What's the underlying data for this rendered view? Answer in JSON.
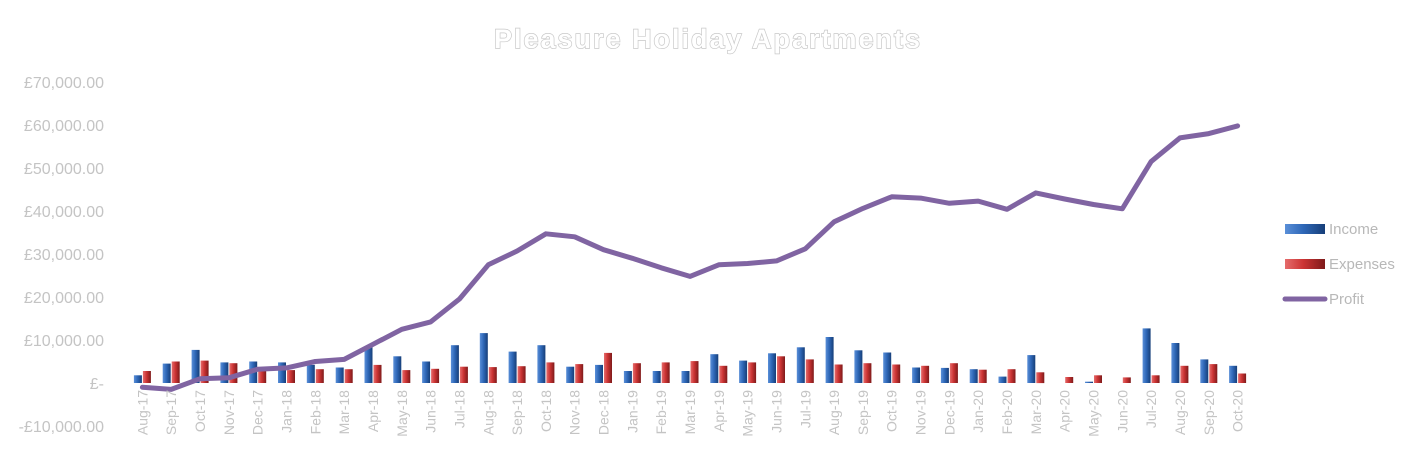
{
  "chart_data": {
    "type": "bar",
    "title": "Pleasure Holiday Apartments",
    "xlabel": "",
    "ylabel": "",
    "ylim": [
      -10000,
      70000
    ],
    "y_ticks": [
      70000,
      60000,
      50000,
      40000,
      30000,
      20000,
      10000,
      0,
      -10000
    ],
    "y_tick_labels": [
      "£70,000.00",
      "£60,000.00",
      "£50,000.00",
      "£40,000.00",
      "£30,000.00",
      "£20,000.00",
      "£10,000.00",
      "£-",
      "-£10,000.00"
    ],
    "grid": false,
    "legend_position": "right",
    "categories": [
      "Aug-17",
      "Sep-17",
      "Oct-17",
      "Nov-17",
      "Dec-17",
      "Jan-18",
      "Feb-18",
      "Mar-18",
      "Apr-18",
      "May-18",
      "Jun-18",
      "Jul-18",
      "Aug-18",
      "Sep-18",
      "Oct-18",
      "Nov-18",
      "Dec-18",
      "Jan-19",
      "Feb-19",
      "Mar-19",
      "Apr-19",
      "May-19",
      "Jun-19",
      "Jul-19",
      "Aug-19",
      "Sep-19",
      "Oct-19",
      "Nov-19",
      "Dec-19",
      "Jan-20",
      "Feb-20",
      "Mar-20",
      "Apr-20",
      "May-20",
      "Jun-20",
      "Jul-20",
      "Aug-20",
      "Sep-20",
      "Oct-20"
    ],
    "series": [
      {
        "name": "Income",
        "type": "bar",
        "color": "#2e64b4",
        "values": [
          1800,
          4500,
          7700,
          4800,
          5000,
          4800,
          4200,
          3600,
          8500,
          6200,
          5000,
          8800,
          11600,
          7300,
          8800,
          3800,
          4200,
          2800,
          2800,
          2800,
          6700,
          5200,
          6900,
          8300,
          10700,
          7600,
          7100,
          3600,
          3500,
          3200,
          1500,
          6500,
          0,
          300,
          0,
          12700,
          9300,
          5500,
          4000
        ]
      },
      {
        "name": "Expenses",
        "type": "bar",
        "color": "#d23a3a",
        "values": [
          2800,
          5000,
          5200,
          4600,
          3000,
          3000,
          3200,
          3200,
          4200,
          3000,
          3300,
          3800,
          3700,
          3900,
          4800,
          4400,
          7000,
          4600,
          4800,
          5100,
          4000,
          4800,
          6200,
          5500,
          4300,
          4600,
          4300,
          4000,
          4600,
          3100,
          3200,
          2500,
          1400,
          1800,
          1300,
          1800,
          4000,
          4400,
          2200
        ]
      },
      {
        "name": "Profit",
        "type": "line",
        "color": "#8064a2",
        "values": [
          -1000,
          -1500,
          1000,
          1200,
          3200,
          3500,
          5000,
          5500,
          9000,
          12500,
          14200,
          19500,
          27500,
          30700,
          34700,
          34000,
          31000,
          29000,
          26800,
          24800,
          27500,
          27800,
          28400,
          31200,
          37500,
          40600,
          43300,
          43000,
          41800,
          42300,
          40400,
          44200,
          42800,
          41500,
          40500,
          51500,
          57000,
          58000,
          59800
        ]
      }
    ]
  }
}
